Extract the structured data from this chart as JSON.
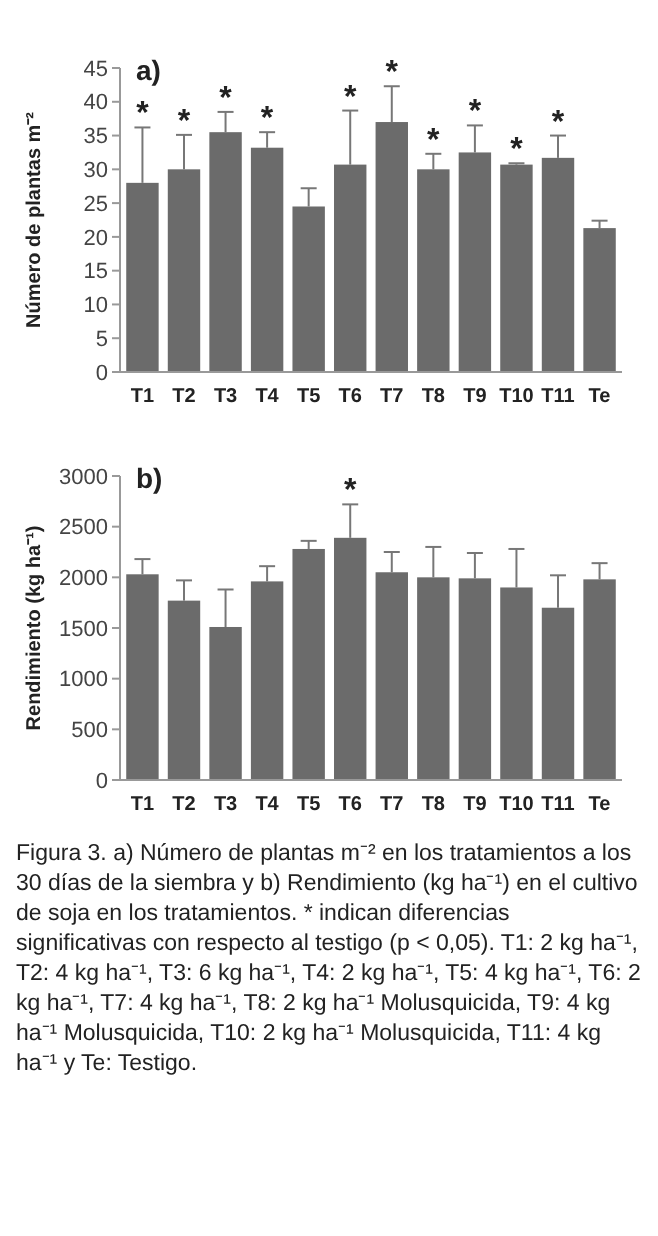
{
  "chart_data": [
    {
      "type": "bar",
      "title": "a)",
      "ylabel": "Número de plantas m⁻²",
      "categories": [
        "T1",
        "T2",
        "T3",
        "T4",
        "T5",
        "T6",
        "T7",
        "T8",
        "T9",
        "T10",
        "T11",
        "Te"
      ],
      "values": [
        28.0,
        30.0,
        35.5,
        33.2,
        24.5,
        30.7,
        37.0,
        30.0,
        32.5,
        30.7,
        31.7,
        21.3
      ],
      "errors": [
        8.2,
        5.1,
        3.0,
        2.3,
        2.7,
        8.0,
        5.3,
        2.3,
        4.0,
        0.2,
        3.3,
        1.1
      ],
      "color": "#6b6b6b",
      "ylim": [
        0,
        45
      ],
      "yticks": [
        0,
        5,
        10,
        15,
        20,
        25,
        30,
        35,
        40,
        45
      ],
      "grid": false,
      "annotations": [
        {
          "text": "*",
          "x": "T1",
          "y": 36.2
        },
        {
          "text": "*",
          "x": "T2",
          "y": 35.1
        },
        {
          "text": "*",
          "x": "T3",
          "y": 38.5
        },
        {
          "text": "*",
          "x": "T4",
          "y": 35.5
        },
        {
          "text": "*",
          "x": "T6",
          "y": 38.7
        },
        {
          "text": "*",
          "x": "T7",
          "y": 42.3
        },
        {
          "text": "*",
          "x": "T8",
          "y": 32.3
        },
        {
          "text": "*",
          "x": "T9",
          "y": 36.5
        },
        {
          "text": "*",
          "x": "T10",
          "y": 30.9
        },
        {
          "text": "*",
          "x": "T11",
          "y": 35.0
        }
      ]
    },
    {
      "type": "bar",
      "title": "b)",
      "ylabel": "Rendimiento (kg ha⁻¹)",
      "categories": [
        "T1",
        "T2",
        "T3",
        "T4",
        "T5",
        "T6",
        "T7",
        "T8",
        "T9",
        "T10",
        "T11",
        "Te"
      ],
      "values": [
        2030,
        1770,
        1510,
        1960,
        2280,
        2390,
        2050,
        2000,
        1990,
        1900,
        1700,
        1980
      ],
      "errors": [
        150,
        200,
        370,
        150,
        80,
        330,
        200,
        300,
        250,
        380,
        320,
        160
      ],
      "color": "#6b6b6b",
      "ylim": [
        0,
        3000
      ],
      "yticks": [
        0,
        500,
        1000,
        1500,
        2000,
        2500,
        3000
      ],
      "grid": false,
      "annotations": [
        {
          "text": "*",
          "x": "T6",
          "y": 2720
        },
        "Figura 3. a) Número de plantas m⁻² en los tratamientos a los 30 días de la siembra y b) Rendimiento (kg ha⁻¹) en el cultivo de soja en los tratamientos. * indican diferencias significativas con respecto al testigo (p < 0,05). T1: 2 kg ha⁻¹, T2: 4 kg ha⁻¹, T3: 6 kg ha⁻¹, T4: 2 kg ha⁻¹, T5: 4 kg ha⁻¹, T6: 2 kg ha⁻¹, T7: 4 kg ha⁻¹, T8: 2 kg ha⁻¹ Molusquicida, T9: 4 kg ha⁻¹ Molusquicida, T10: 2 kg ha⁻¹ Molusquicida, T11: 4 kg ha⁻¹ y Te: Testigo."
      ]
    }
  ]
}
